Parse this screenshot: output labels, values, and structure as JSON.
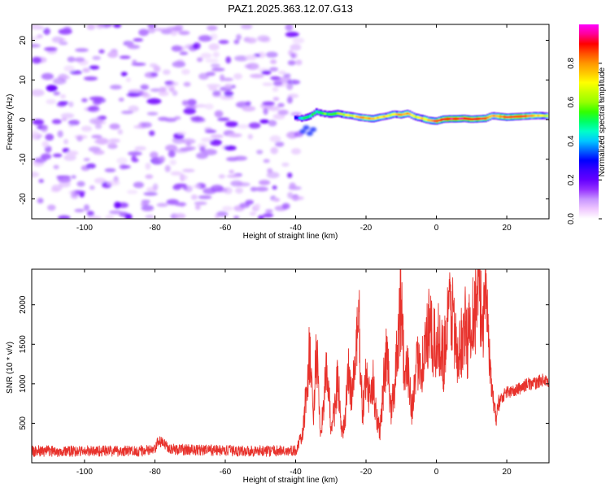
{
  "figure_title": "PAZ1.2025.363.12.07.G13",
  "colors": {
    "snr_line": "#e8322c",
    "axis": "#000000"
  },
  "colormap": [
    "#ffffff",
    "#f0c8ff",
    "#c896ff",
    "#9632ff",
    "#6400ff",
    "#3c00ff",
    "#0000ff",
    "#0064ff",
    "#00c8ff",
    "#00ffc8",
    "#00ff64",
    "#32ff00",
    "#96ff00",
    "#c8ff00",
    "#ffff00",
    "#ffc800",
    "#ff9600",
    "#ff5000",
    "#ff0000",
    "#ff0096",
    "#ff00ff"
  ],
  "chart_data": [
    {
      "type": "heatmap",
      "title": "PAZ1.2025.363.12.07.G13",
      "xlabel": "Height of straight line (km)",
      "ylabel": "Frequency (Hz)",
      "xlim": [
        -115,
        32
      ],
      "ylim": [
        -25,
        24
      ],
      "xticks": [
        -100,
        -80,
        -60,
        -40,
        -20,
        0,
        20
      ],
      "yticks": [
        -20,
        -10,
        0,
        10,
        20
      ],
      "noise_region_x": [
        -115,
        -39
      ],
      "signal_track": {
        "x": [
          -40,
          -38,
          -36,
          -34,
          -32,
          -30,
          -28,
          -26,
          -24,
          -22,
          -20,
          -18,
          -16,
          -14,
          -12,
          -10,
          -8,
          -6,
          -4,
          -2,
          0,
          2,
          4,
          6,
          8,
          10,
          12,
          14,
          16,
          18,
          20,
          22,
          24,
          26,
          28,
          30,
          32
        ],
        "freq": [
          0.5,
          0.3,
          0.8,
          2.0,
          1.5,
          1.3,
          1.6,
          1.2,
          1.0,
          0.6,
          0.4,
          0.2,
          0.6,
          0.9,
          1.4,
          1.2,
          1.6,
          0.7,
          0.3,
          -0.2,
          -0.4,
          0.1,
          0.2,
          0.2,
          0.3,
          0.1,
          0.2,
          0.3,
          1.0,
          0.8,
          0.6,
          0.7,
          0.8,
          0.9,
          1.0,
          1.0,
          0.9
        ],
        "amplitude": [
          0.3,
          0.45,
          0.5,
          0.5,
          0.55,
          0.55,
          0.6,
          0.65,
          0.7,
          0.75,
          0.8,
          0.75,
          0.7,
          0.7,
          0.7,
          0.8,
          0.75,
          0.65,
          0.7,
          0.75,
          0.85,
          0.9,
          0.92,
          0.95,
          0.92,
          0.9,
          0.88,
          0.85,
          0.75,
          0.8,
          0.85,
          0.9,
          0.85,
          0.8,
          0.75,
          0.7,
          0.65
        ]
      },
      "colorbar": {
        "label": "Normalized spectral amplitude",
        "range": [
          0,
          1
        ],
        "ticks": [
          "0.0",
          "0.2",
          "0.4",
          "0.6",
          "0.8"
        ]
      }
    },
    {
      "type": "line",
      "xlabel": "Height of straight line (km)",
      "ylabel": "SNR (10 * v/v)",
      "xlim": [
        -115,
        32
      ],
      "ylim": [
        0,
        2450
      ],
      "xticks": [
        -100,
        -80,
        -60,
        -40,
        -20,
        0,
        20
      ],
      "yticks": [
        500,
        1000,
        1500,
        2000
      ],
      "series": [
        {
          "name": "SNR",
          "x": [
            -115,
            -105,
            -95,
            -85,
            -80,
            -79,
            -75,
            -65,
            -55,
            -45,
            -40,
            -38,
            -36,
            -35,
            -34,
            -33,
            -32,
            -31,
            -30,
            -29,
            -28,
            -27,
            -26,
            -25,
            -24,
            -23,
            -22,
            -21,
            -20,
            -19,
            -18,
            -17,
            -16,
            -15,
            -14,
            -13,
            -12,
            -11,
            -10,
            -9,
            -8,
            -7,
            -6,
            -5,
            -4,
            -3,
            -2,
            -1,
            0,
            1,
            2,
            3,
            4,
            5,
            6,
            7,
            8,
            9,
            10,
            11,
            12,
            13,
            14,
            15,
            16,
            17,
            18,
            20,
            22,
            24,
            26,
            28,
            30,
            32
          ],
          "values": [
            150,
            145,
            150,
            150,
            160,
            280,
            170,
            160,
            150,
            150,
            150,
            350,
            1400,
            600,
            1450,
            300,
            800,
            1200,
            450,
            650,
            1100,
            350,
            500,
            1150,
            850,
            1300,
            1800,
            600,
            1100,
            800,
            1000,
            600,
            400,
            1000,
            1400,
            650,
            900,
            1600,
            2150,
            1000,
            1200,
            700,
            1000,
            1400,
            1250,
            1500,
            1700,
            1500,
            1450,
            1600,
            1300,
            1700,
            2000,
            1800,
            1200,
            1500,
            1750,
            1500,
            2000,
            1900,
            2300,
            1700,
            2350,
            1400,
            800,
            580,
            800,
            900,
            900,
            950,
            1000,
            1000,
            1050,
            1000
          ]
        }
      ]
    }
  ]
}
